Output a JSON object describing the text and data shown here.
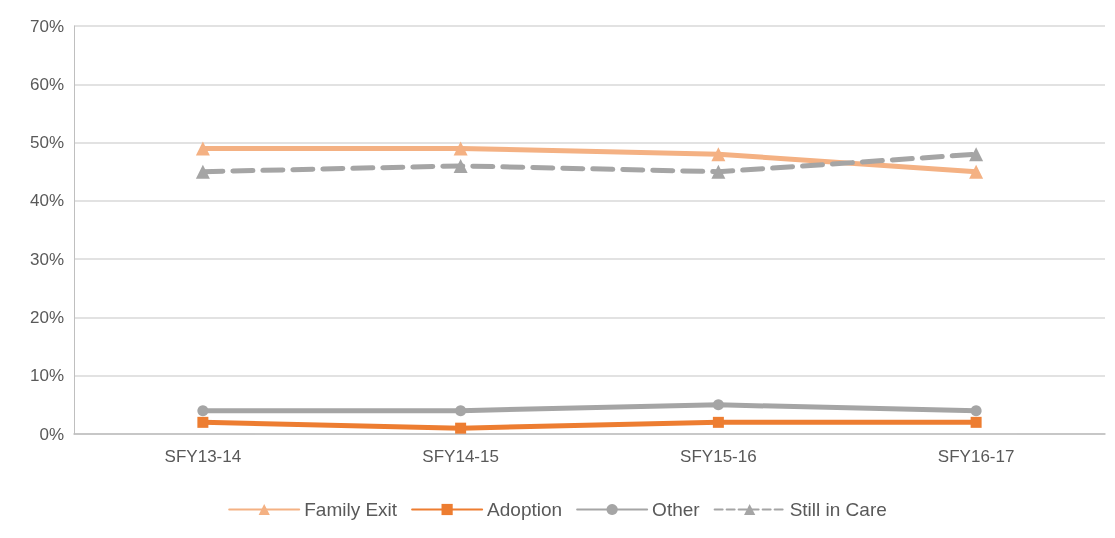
{
  "chart_data": {
    "type": "line",
    "categories": [
      "SFY13-14",
      "SFY14-15",
      "SFY15-16",
      "SFY16-17"
    ],
    "series": [
      {
        "name": "Family Exit",
        "color": "#f4b183",
        "values": [
          49,
          49,
          48,
          45
        ],
        "marker": "triangle",
        "line_style": "solid"
      },
      {
        "name": "Adoption",
        "color": "#ed7d31",
        "values": [
          2,
          1,
          2,
          2
        ],
        "marker": "square",
        "line_style": "solid"
      },
      {
        "name": "Other",
        "color": "#a5a5a5",
        "values": [
          4,
          4,
          5,
          4
        ],
        "marker": "circle",
        "line_style": "solid"
      },
      {
        "name": "Still in Care",
        "color": "#a5a5a5",
        "values": [
          45,
          46,
          45,
          48
        ],
        "marker": "triangle",
        "line_style": "dashed"
      }
    ],
    "ylim": [
      0,
      70
    ],
    "yticks": [
      {
        "value": 0,
        "label": "0%"
      },
      {
        "value": 10,
        "label": "10%"
      },
      {
        "value": 20,
        "label": "20%"
      },
      {
        "value": 30,
        "label": "30%"
      },
      {
        "value": 40,
        "label": "40%"
      },
      {
        "value": 50,
        "label": "50%"
      },
      {
        "value": 60,
        "label": "60%"
      },
      {
        "value": 70,
        "label": "70%"
      }
    ],
    "grid": "y",
    "legend": "bottom"
  }
}
